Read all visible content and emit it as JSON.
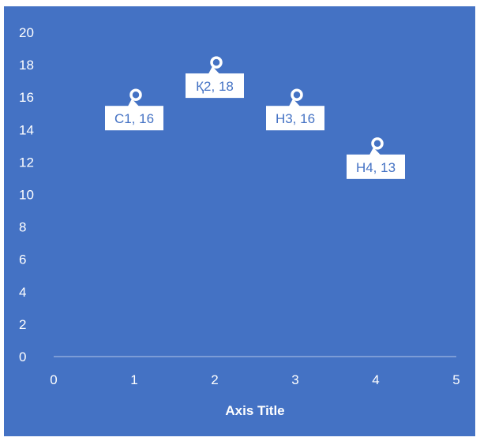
{
  "colors": {
    "background": "#4472C4",
    "foreground": "#ffffff",
    "axis_line": "#8FAADC"
  },
  "chart_data": {
    "type": "scatter",
    "xlabel": "Axis Title",
    "ylabel": "",
    "xlim": [
      0,
      5
    ],
    "ylim": [
      0,
      20
    ],
    "x_ticks": [
      0,
      1,
      2,
      3,
      4,
      5
    ],
    "y_ticks": [
      0,
      2,
      4,
      6,
      8,
      10,
      12,
      14,
      16,
      18,
      20
    ],
    "grid": false,
    "legend": false,
    "marker": "circle",
    "points": [
      {
        "label": "С1, 16",
        "x": 1,
        "y": 16
      },
      {
        "label": "Қ2, 18",
        "x": 2,
        "y": 18
      },
      {
        "label": "Н3, 16",
        "x": 3,
        "y": 16
      },
      {
        "label": "Н4, 13",
        "x": 4,
        "y": 13
      }
    ]
  }
}
